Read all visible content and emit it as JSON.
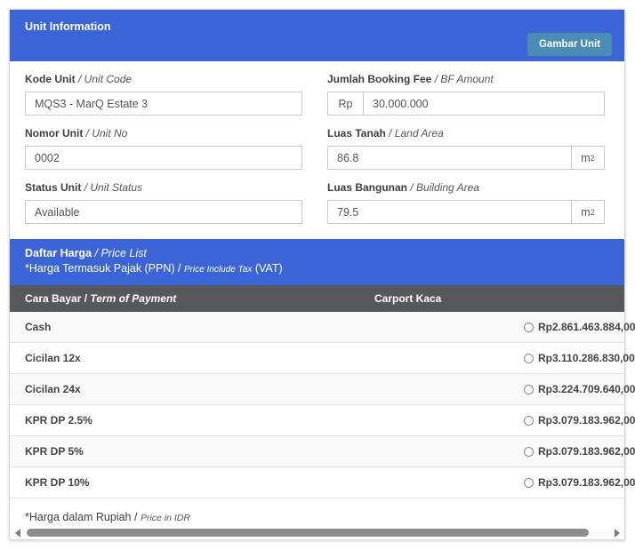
{
  "colors": {
    "primary_blue": "#3b64d6",
    "button_teal": "#4a8cb2",
    "table_head_gray": "#57585a"
  },
  "unit_info": {
    "title": "Unit Information",
    "gambar_unit_button": "Gambar Unit",
    "fields": {
      "kode_unit": {
        "label_id": "Kode Unit",
        "label_en": "/ Unit Code",
        "value": "MQS3 - MarQ Estate 3"
      },
      "booking_fee": {
        "label_id": "Jumlah Booking Fee",
        "label_en": "/ BF Amount",
        "prefix": "Rp",
        "value": "30.000.000"
      },
      "nomor_unit": {
        "label_id": "Nomor Unit",
        "label_en": "/ Unit No",
        "value": "0002"
      },
      "luas_tanah": {
        "label_id": "Luas Tanah",
        "label_en": "/ Land Area",
        "value": "86.8",
        "suffix_base": "m",
        "suffix_exp": "2"
      },
      "status_unit": {
        "label_id": "Status Unit",
        "label_en": "/ Unit Status",
        "value": "Available"
      },
      "luas_bangunan": {
        "label_id": "Luas Bangunan",
        "label_en": "/ Building Area",
        "value": "79.5",
        "suffix_base": "m",
        "suffix_exp": "2"
      }
    }
  },
  "price_list": {
    "title_id": "Daftar Harga",
    "title_en": "/ Price List",
    "subtitle_id": "*Harga Termasuk Pajak (PPN)  /",
    "subtitle_en": "Price Include Tax",
    "subtitle_vat": "(VAT)",
    "col_term_id": "Cara Bayar /",
    "col_term_en": "Term of Payment",
    "col_product": "Carport Kaca",
    "rows": [
      {
        "term": "Cash",
        "price": "Rp2.861.463.884,00"
      },
      {
        "term": "Cicilan 12x",
        "price": "Rp3.110.286.830,00"
      },
      {
        "term": "Cicilan 24x",
        "price": "Rp3.224.709.640,00"
      },
      {
        "term": "KPR DP 2.5%",
        "price": "Rp3.079.183.962,00"
      },
      {
        "term": "KPR DP 5%",
        "price": "Rp3.079.183.962,00"
      },
      {
        "term": "KPR DP 10%",
        "price": "Rp3.079.183.962,00"
      }
    ],
    "footnote_id": "*Harga dalam Rupiah /",
    "footnote_en": "Price in IDR"
  }
}
